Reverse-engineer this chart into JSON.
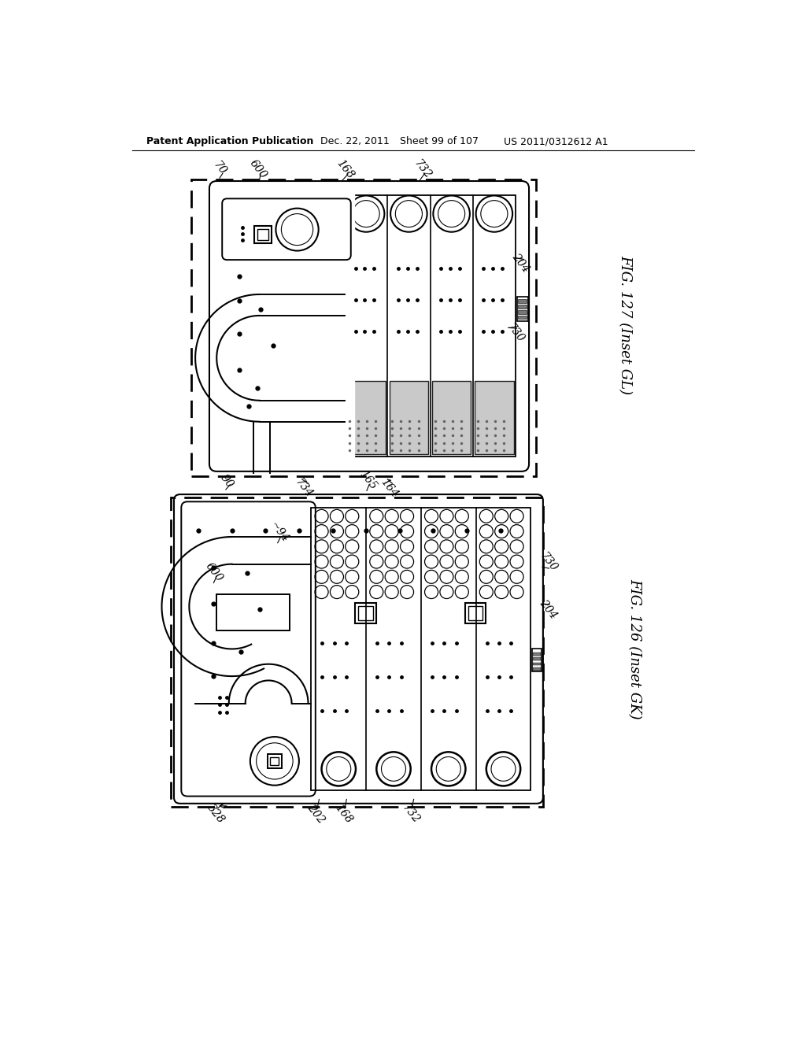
{
  "bg_color": "#ffffff",
  "lc": "#000000",
  "header_text": "Patent Application Publication",
  "header_date": "Dec. 22, 2011",
  "header_sheet": "Sheet 99 of 107",
  "header_patent": "US 2011/0312612 A1",
  "fig1_title": "FIG. 127 (Inset GL)",
  "fig2_title": "FIG. 126 (Inset GK)"
}
